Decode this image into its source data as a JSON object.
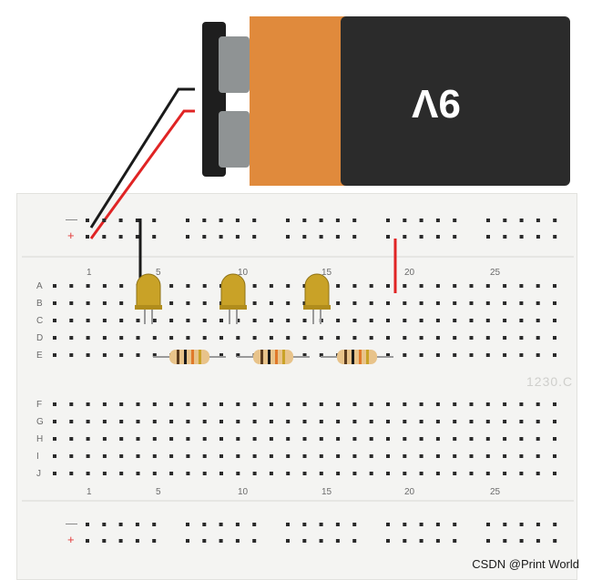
{
  "battery": {
    "label": "9V",
    "colors": {
      "body_dark": "#2b2b2b",
      "body_orange": "#e08a3c",
      "terminal": "#8f9394",
      "end_cap": "#1e1e1e"
    }
  },
  "breadboard": {
    "row_labels_top": [
      "A",
      "B",
      "C",
      "D",
      "E"
    ],
    "row_labels_bottom": [
      "F",
      "G",
      "H",
      "I",
      "J"
    ],
    "column_labels": [
      "1",
      "5",
      "10",
      "15",
      "20",
      "25"
    ],
    "rail_signs": {
      "plus": "+",
      "minus": "—"
    },
    "id_text": "1230.C"
  },
  "components": {
    "leds": [
      {
        "name": "led-1",
        "color": "#c9a227"
      },
      {
        "name": "led-2",
        "color": "#c9a227"
      },
      {
        "name": "led-3",
        "color": "#c9a227"
      }
    ],
    "resistors": [
      {
        "name": "resistor-1",
        "bands": [
          "#5a3b1e",
          "#1a1a1a",
          "#e0782a",
          "#c9a227"
        ]
      },
      {
        "name": "resistor-2",
        "bands": [
          "#5a3b1e",
          "#1a1a1a",
          "#e0782a",
          "#c9a227"
        ]
      },
      {
        "name": "resistor-3",
        "bands": [
          "#5a3b1e",
          "#1a1a1a",
          "#e0782a",
          "#c9a227"
        ]
      }
    ],
    "wires": {
      "red": "#e02424",
      "black": "#1a1a1a"
    }
  },
  "footer": {
    "credit": "CSDN @Print World"
  }
}
